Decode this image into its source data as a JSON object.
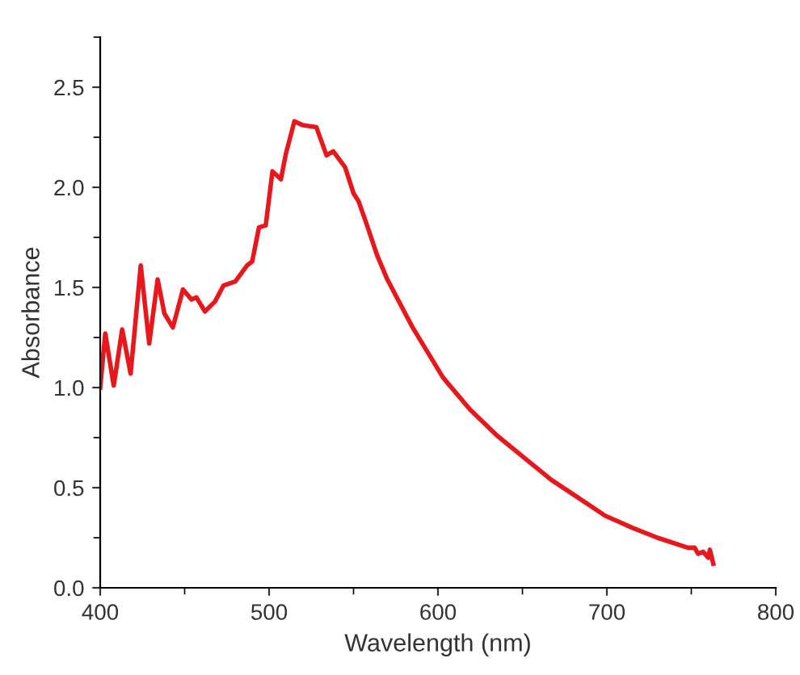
{
  "chart_data": {
    "type": "line",
    "xlabel": "Wavelength (nm)",
    "ylabel": "Absorbance",
    "xlim": [
      400,
      800
    ],
    "xticks": [
      400,
      500,
      600,
      700,
      800
    ],
    "ylim": [
      0,
      2.75
    ],
    "yticks": [
      {
        "value": 0,
        "label": "0.0"
      },
      0.5,
      {
        "value": 1,
        "label": "1.0"
      },
      1.5,
      {
        "value": 2,
        "label": "2.0"
      },
      2.5
    ],
    "grid": false,
    "marker": "none",
    "line_style": "solid",
    "series": [
      {
        "color": "#e8171c",
        "x": [
          400,
          403,
          408,
          413,
          418,
          424,
          429,
          434,
          438,
          443,
          449,
          454,
          457,
          462,
          468,
          473,
          480,
          487,
          490,
          494,
          498,
          502,
          507,
          510,
          515,
          520,
          528,
          534,
          538,
          545,
          550,
          553,
          558,
          564,
          570,
          585,
          603,
          619,
          635,
          651,
          667,
          683,
          699,
          715,
          730,
          748,
          752,
          754,
          757,
          760,
          761,
          763
        ],
        "values": [
          1.0,
          1.27,
          1.01,
          1.29,
          1.07,
          1.61,
          1.22,
          1.54,
          1.37,
          1.3,
          1.49,
          1.44,
          1.45,
          1.38,
          1.43,
          1.51,
          1.53,
          1.61,
          1.63,
          1.8,
          1.81,
          2.08,
          2.04,
          2.17,
          2.33,
          2.31,
          2.3,
          2.16,
          2.18,
          2.1,
          1.97,
          1.93,
          1.81,
          1.66,
          1.54,
          1.3,
          1.05,
          0.89,
          0.76,
          0.65,
          0.54,
          0.45,
          0.36,
          0.3,
          0.25,
          0.2,
          0.2,
          0.17,
          0.18,
          0.15,
          0.19,
          0.12
        ]
      }
    ]
  }
}
